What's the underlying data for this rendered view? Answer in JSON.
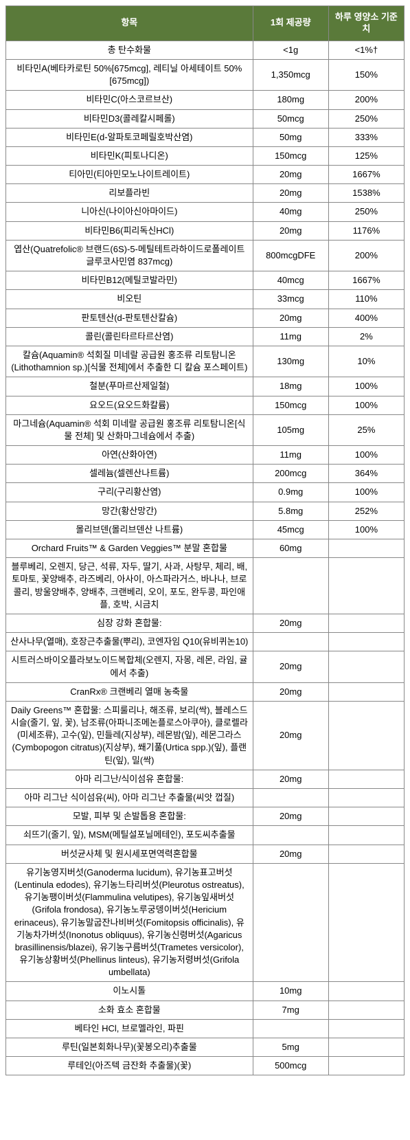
{
  "headers": {
    "col1": "항목",
    "col2": "1회 제공량",
    "col3": "하루 영양소 기준치"
  },
  "rows": [
    {
      "name": "총 탄수화물",
      "serving": "<1g",
      "dv": "<1%†"
    },
    {
      "name": "비타민A(베타카로틴 50%[675mcg], 레티닐 아세테이트 50%[675mcg])",
      "serving": "1,350mcg",
      "dv": "150%"
    },
    {
      "name": "비타민C(아스코르브산)",
      "serving": "180mg",
      "dv": "200%"
    },
    {
      "name": "비타민D3(콜레칼시페롤)",
      "serving": "50mcg",
      "dv": "250%"
    },
    {
      "name": "비타민E(d-알파토코페릴호박산염)",
      "serving": "50mg",
      "dv": "333%"
    },
    {
      "name": "비타민K(피토나디온)",
      "serving": "150mcg",
      "dv": "125%"
    },
    {
      "name": "티아민(티아민모노나이트레이트)",
      "serving": "20mg",
      "dv": "1667%"
    },
    {
      "name": "리보플라빈",
      "serving": "20mg",
      "dv": "1538%"
    },
    {
      "name": "니아신(나이아신아마이드)",
      "serving": "40mg",
      "dv": "250%"
    },
    {
      "name": "비타민B6(피리독신HCl)",
      "serving": "20mg",
      "dv": "1176%"
    },
    {
      "name": "엽산(Quatrefolic® 브랜드(6S)-5-메틸테트라하이드로폴레이트 글루코사민염 837mcg)",
      "serving": "800mcgDFE",
      "dv": "200%"
    },
    {
      "name": "비타민B12(메틸코발라민)",
      "serving": "40mcg",
      "dv": "1667%"
    },
    {
      "name": "비오틴",
      "serving": "33mcg",
      "dv": "110%"
    },
    {
      "name": "판토텐산(d-판토텐산칼슘)",
      "serving": "20mg",
      "dv": "400%"
    },
    {
      "name": "콜린(콜린타르타르산염)",
      "serving": "11mg",
      "dv": "2%"
    },
    {
      "name": "칼슘(Aquamin® 석회질 미네랄 공급원 홍조류 리토탐니온(Lithothamnion sp.)[식물 전체]에서 추출한 디 칼슘 포스페이트)",
      "serving": "130mg",
      "dv": "10%"
    },
    {
      "name": "철분(푸마르산제일철)",
      "serving": "18mg",
      "dv": "100%"
    },
    {
      "name": "요오드(요오드화칼륨)",
      "serving": "150mcg",
      "dv": "100%"
    },
    {
      "name": "마그네슘(Aquamin® 석회 미네랄 공급원 홍조류 리토탐니온[식물 전체] 및 산화마그네슘에서 추출)",
      "serving": "105mg",
      "dv": "25%"
    },
    {
      "name": "아연(산화아연)",
      "serving": "11mg",
      "dv": "100%"
    },
    {
      "name": "셀레늄(셀렌산나트륨)",
      "serving": "200mcg",
      "dv": "364%"
    },
    {
      "name": "구리(구리황산염)",
      "serving": "0.9mg",
      "dv": "100%"
    },
    {
      "name": "망간(황산망간)",
      "serving": "5.8mg",
      "dv": "252%"
    },
    {
      "name": "몰리브덴(몰리브덴산 나트륨)",
      "serving": "45mcg",
      "dv": "100%"
    },
    {
      "name": "Orchard Fruits™ & Garden Veggies™ 분말 혼합물",
      "serving": "60mg",
      "dv": ""
    },
    {
      "name": "블루베리, 오렌지, 당근, 석류, 자두, 딸기, 사과, 사탕무, 체리, 배, 토마토, 꽃양배추, 라즈베리, 아사이, 아스파라거스, 바나나, 브로콜리, 방울양배추, 양배추, 크랜베리, 오이, 포도, 완두콩, 파인애플, 호박, 시금치",
      "serving": "",
      "dv": ""
    },
    {
      "name": "심장 강화 혼합물:",
      "serving": "20mg",
      "dv": ""
    },
    {
      "name": "산사나무(열매), 호장근추출물(뿌리), 코엔자임 Q10(유비퀴논10)",
      "serving": "",
      "dv": ""
    },
    {
      "name": "시트러스바이오플라보노이드복합체(오렌지, 자몽, 레몬, 라임, 귤에서 추출)",
      "serving": "20mg",
      "dv": ""
    },
    {
      "name": "CranRx® 크랜베리 열매 농축물",
      "serving": "20mg",
      "dv": ""
    },
    {
      "name": "Daily Greens™ 혼합물: 스피룰리나, 해조류, 보리(싹), 블레스드시슬(줄기, 잎, 꽃), 남조류(아파니조메논플로스아쿠아), 클로렐라(미세조류), 고수(잎), 민들레(지상부), 레몬밤(잎), 레몬그라스(Cymbopogon citratus)(지상부), 쐐기풀(Urtica spp.)(잎), 플랜틴(잎), 밀(싹)",
      "serving": "20mg",
      "dv": ""
    },
    {
      "name": "아마 리그난/식이섬유 혼합물:",
      "serving": "20mg",
      "dv": ""
    },
    {
      "name": "아마 리그난 식이섬유(씨), 아마 리그난 추출물(씨앗 껍질)",
      "serving": "",
      "dv": ""
    },
    {
      "name": "모발, 피부 및 손발톱용 혼합물:",
      "serving": "20mg",
      "dv": ""
    },
    {
      "name": "쇠뜨기(줄기, 잎), MSM(메틸설포닐메테인), 포도씨추출물",
      "serving": "",
      "dv": ""
    },
    {
      "name": "버섯균사체 및 원시세포면역력혼합물",
      "serving": "20mg",
      "dv": ""
    },
    {
      "name": "유기농영지버섯(Ganoderma lucidum), 유기농표고버섯(Lentinula edodes), 유기농느타리버섯(Pleurotus ostreatus), 유기농팽이버섯(Flammulina velutipes), 유기농잎새버섯(Grifola frondosa), 유기농노루궁뎅이버섯(Hericium erinaceus), 유기농말굽잔나비버섯(Fomitopsis officinalis), 유기농차가버섯(Inonotus obliquus), 유기농신령버섯(Agaricus brasillinensis/blazei), 유기농구름버섯(Trametes versicolor), 유기농상황버섯(Phellinus linteus), 유기농저령버섯(Grifola umbellata)",
      "serving": "",
      "dv": ""
    },
    {
      "name": "이노시톨",
      "serving": "10mg",
      "dv": ""
    },
    {
      "name": "소화 효소 혼합물",
      "serving": "7mg",
      "dv": ""
    },
    {
      "name": "베타인 HCl, 브로멜라인, 파핀",
      "serving": "",
      "dv": ""
    },
    {
      "name": "루틴(일본회화나무)(꽃봉오리)추출물",
      "serving": "5mg",
      "dv": ""
    },
    {
      "name": "루테인(아즈텍 금잔화 추출물)(꽃)",
      "serving": "500mcg",
      "dv": ""
    }
  ],
  "style": {
    "header_bg": "#5a7a3a",
    "header_fg": "#ffffff",
    "border_color": "#888888",
    "font_size": 13
  }
}
